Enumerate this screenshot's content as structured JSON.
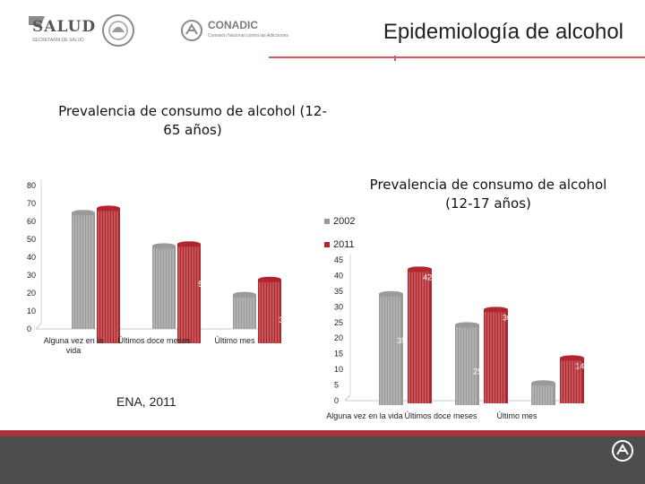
{
  "header": {
    "salud_text": "SALUD",
    "salud_sub": "SECRETARÍA DE SALUD",
    "conadic_name": "CONADIC",
    "conadic_sub": "Comisión Nacional contra las Adicciones",
    "page_title": "Epidemiología de alcohol"
  },
  "source_label": "ENA, 2011",
  "colors": {
    "2002": "#9a9a9a",
    "2011": "#b0262c",
    "accent": "#d05a66",
    "footer": "#4d4d4d"
  },
  "chart_data": [
    {
      "type": "bar",
      "title": "Prevalencia de consumo de alcohol (12-65 años)",
      "categories": [
        "Alguna vez en la vida",
        "Últimos doce meses",
        "Último mes"
      ],
      "series": [
        {
          "name": "2002",
          "values": [
            64.9,
            46.3,
            19.2
          ]
        },
        {
          "name": "2011",
          "values": [
            71.3,
            51.4,
            31.6
          ]
        }
      ],
      "value_labels": {
        "2002": [
          "64.9",
          "46.3",
          "19.2"
        ],
        "2011": [
          "71",
          "51.4",
          "31.6"
        ]
      },
      "ylim": [
        0,
        80
      ],
      "yticks": [
        0,
        10,
        20,
        30,
        40,
        50,
        60,
        70,
        80
      ],
      "grid": false
    },
    {
      "type": "bar",
      "title": "Prevalencia de consumo de alcohol (12-17 años)",
      "categories": [
        "Alguna vez en la vida",
        "Últimos doce meses",
        "Último mes"
      ],
      "series": [
        {
          "name": "2002",
          "values": [
            35.6,
            25.7,
            7.1
          ]
        },
        {
          "name": "2011",
          "values": [
            42.9,
            30,
            14.5
          ]
        }
      ],
      "value_labels": {
        "2002": [
          "35.6",
          "25.7",
          "7.1"
        ],
        "2011": [
          "42.9",
          "30",
          "14.5"
        ]
      },
      "ylim": [
        0,
        45
      ],
      "yticks": [
        0,
        5,
        10,
        15,
        20,
        25,
        30,
        35,
        40,
        45
      ],
      "legend": {
        "position": "top-left",
        "entries": [
          "2002",
          "2011"
        ]
      },
      "grid": false
    }
  ]
}
